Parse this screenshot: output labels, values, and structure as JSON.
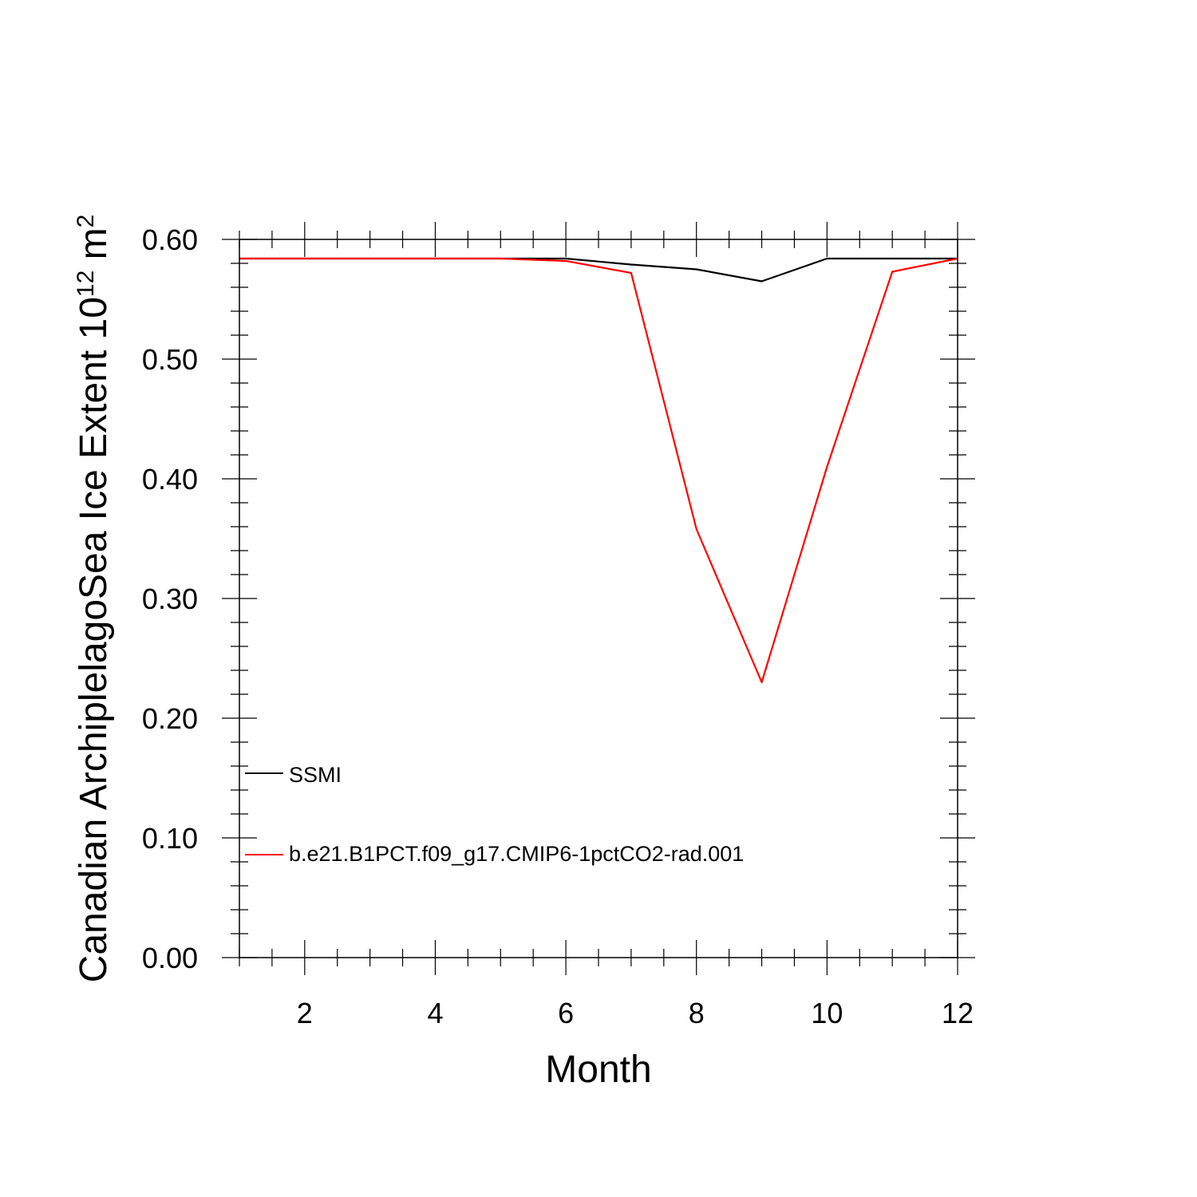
{
  "chart_data": {
    "type": "line",
    "xlabel": "Month",
    "ylabel": {
      "main": "Canadian ArchiplelagoSea Ice Extent 10",
      "exponent": "12",
      "unit": " m",
      "unit_exponent": "2"
    },
    "xlim": [
      1,
      12
    ],
    "ylim": [
      0,
      0.6
    ],
    "x_ticks": [
      2,
      4,
      6,
      8,
      10,
      12
    ],
    "y_ticks": [
      "0.00",
      "0.10",
      "0.20",
      "0.30",
      "0.40",
      "0.50",
      "0.60"
    ],
    "grid": false,
    "legend_position": "lower-left",
    "x": [
      1,
      2,
      3,
      4,
      5,
      6,
      7,
      8,
      9,
      10,
      11,
      12
    ],
    "series": [
      {
        "name": "SSMI",
        "color": "#000000",
        "values": [
          0.584,
          0.584,
          0.584,
          0.584,
          0.584,
          0.584,
          0.579,
          0.575,
          0.565,
          0.584,
          0.584,
          0.584
        ]
      },
      {
        "name": "b.e21.B1PCT.f09_g17.CMIP6-1pctCO2-rad.001",
        "color": "#ff0000",
        "values": [
          0.584,
          0.584,
          0.584,
          0.584,
          0.584,
          0.582,
          0.572,
          0.358,
          0.23,
          0.41,
          0.573,
          0.584
        ]
      }
    ]
  }
}
